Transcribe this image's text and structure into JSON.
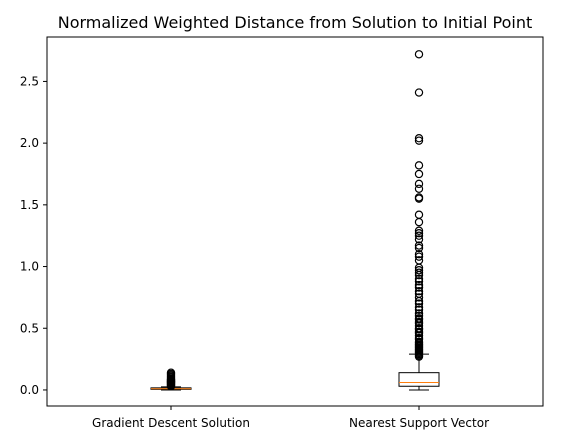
{
  "chart_data": {
    "type": "boxplot",
    "title": "Normalized Weighted Distance from Solution to Initial Point",
    "xlabel": "",
    "ylabel": "",
    "categories": [
      "Gradient Descent Solution",
      "Nearest Support Vector"
    ],
    "ylim": [
      -0.13,
      2.86
    ],
    "yticks": [
      0.0,
      0.5,
      1.0,
      1.5,
      2.0,
      2.5
    ],
    "ytick_labels": [
      "0.0",
      "0.5",
      "1.0",
      "1.5",
      "2.0",
      "2.5"
    ],
    "grid": false,
    "legend": "none",
    "series": [
      {
        "box": {
          "whislo": 0.0,
          "q1": 0.005,
          "median": 0.01,
          "q3": 0.017,
          "whishi": 0.025
        },
        "fliers": [
          0.03,
          0.035,
          0.04,
          0.045,
          0.05,
          0.055,
          0.06,
          0.065,
          0.07,
          0.075,
          0.08,
          0.085,
          0.09,
          0.1,
          0.11,
          0.12,
          0.13,
          0.14
        ]
      },
      {
        "box": {
          "whislo": 0.0,
          "q1": 0.03,
          "median": 0.06,
          "q3": 0.14,
          "whishi": 0.29
        },
        "fliers": [
          0.27,
          0.28,
          0.29,
          0.3,
          0.31,
          0.32,
          0.33,
          0.34,
          0.35,
          0.36,
          0.37,
          0.38,
          0.39,
          0.41,
          0.42,
          0.44,
          0.46,
          0.47,
          0.49,
          0.5,
          0.52,
          0.54,
          0.55,
          0.57,
          0.58,
          0.6,
          0.62,
          0.65,
          0.67,
          0.7,
          0.72,
          0.75,
          0.78,
          0.8,
          0.83,
          0.85,
          0.88,
          0.9,
          0.93,
          0.95,
          0.97,
          0.99,
          1.05,
          1.08,
          1.1,
          1.15,
          1.17,
          1.22,
          1.25,
          1.27,
          1.29,
          1.36,
          1.42,
          1.55,
          1.56,
          1.63,
          1.67,
          1.75,
          1.82,
          2.02,
          2.04,
          2.41,
          2.72
        ]
      }
    ],
    "colors": {
      "median": "#ff7f0e",
      "box": "#000000",
      "background": "#ffffff"
    }
  }
}
